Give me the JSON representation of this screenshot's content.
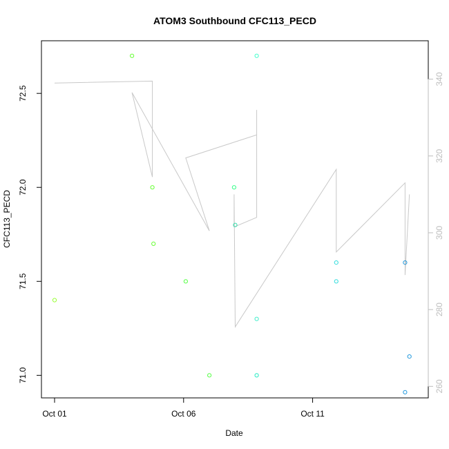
{
  "chart_data": {
    "type": "scatter",
    "title": "ATOM3 Southbound CFC113_PECD",
    "xlabel": "Date",
    "ylabel": "CFC113_PECD",
    "xlim": [
      "2016-10-01",
      "2016-10-15"
    ],
    "ylim": [
      70.88,
      72.78
    ],
    "y2lim": [
      257,
      350
    ],
    "x_tick_labels": [
      "Oct 01",
      "Oct 06",
      "Oct 11"
    ],
    "x_ticks": [
      "2016-10-01",
      "2016-10-06",
      "2016-10-11"
    ],
    "y_ticks": [
      71.0,
      71.5,
      72.0,
      72.5
    ],
    "y_tick_labels": [
      "71.0",
      "71.5",
      "72.0",
      "72.5"
    ],
    "y2_ticks": [
      260,
      280,
      300,
      320,
      340
    ],
    "y2_tick_labels": [
      "260",
      "280",
      "300",
      "320",
      "340"
    ],
    "grid": false,
    "colors": {
      "points_early": "#66ff33",
      "points_mid": "#33eebb",
      "points_late": "#22aadd",
      "line": "#c8c8c8"
    },
    "series": [
      {
        "kind": "points",
        "axis": "left",
        "x": [
          "2016-10-01 00:00",
          "2016-10-04 00:00",
          "2016-10-04 19:00",
          "2016-10-04 20:00",
          "2016-10-06 02:00",
          "2016-10-07 00:00",
          "2016-10-07 23:00",
          "2016-10-08 00:00",
          "2016-10-08 20:00",
          "2016-10-08 20:00",
          "2016-10-08 20:00",
          "2016-10-08 20:00",
          "2016-10-11 22:00",
          "2016-10-11 22:00",
          "2016-10-14 14:00",
          "2016-10-14 14:00",
          "2016-10-14 18:00"
        ],
        "y": [
          71.4,
          72.7,
          72.0,
          71.7,
          71.5,
          71.0,
          72.0,
          71.8,
          72.7,
          71.3,
          71.0,
          71.0,
          71.6,
          71.5,
          71.6,
          70.91,
          71.1
        ],
        "color": [
          "#99ff33",
          "#66ff33",
          "#66ff33",
          "#66ff33",
          "#55ff44",
          "#55ff44",
          "#33ff88",
          "#33ddaa",
          "#44ffcc",
          "#44eecc",
          "#44eecc",
          "#44eecc",
          "#33dddd",
          "#33dddd",
          "#2299dd",
          "#2299dd",
          "#2299dd"
        ]
      },
      {
        "kind": "line",
        "axis": "right",
        "x": [
          "2016-10-01 00:00",
          "2016-10-04 19:00",
          "2016-10-04 19:00",
          "2016-10-04 00:00",
          "2016-10-07 00:00",
          "2016-10-06 02:00",
          "2016-10-08 20:00",
          "2016-10-08 20:00",
          "2016-10-08 20:00",
          "2016-10-07 23:00",
          "2016-10-07 23:00",
          "2016-10-08 00:00",
          "2016-10-11 22:00",
          "2016-10-11 22:00",
          "2016-10-14 14:00",
          "2016-10-14 14:00",
          "2016-10-14 18:00"
        ],
        "y": [
          339,
          339.5,
          314.5,
          336.5,
          300.5,
          319.5,
          325.5,
          332,
          304,
          301.5,
          310,
          275.5,
          316.5,
          295,
          313,
          289,
          310
        ]
      }
    ]
  }
}
